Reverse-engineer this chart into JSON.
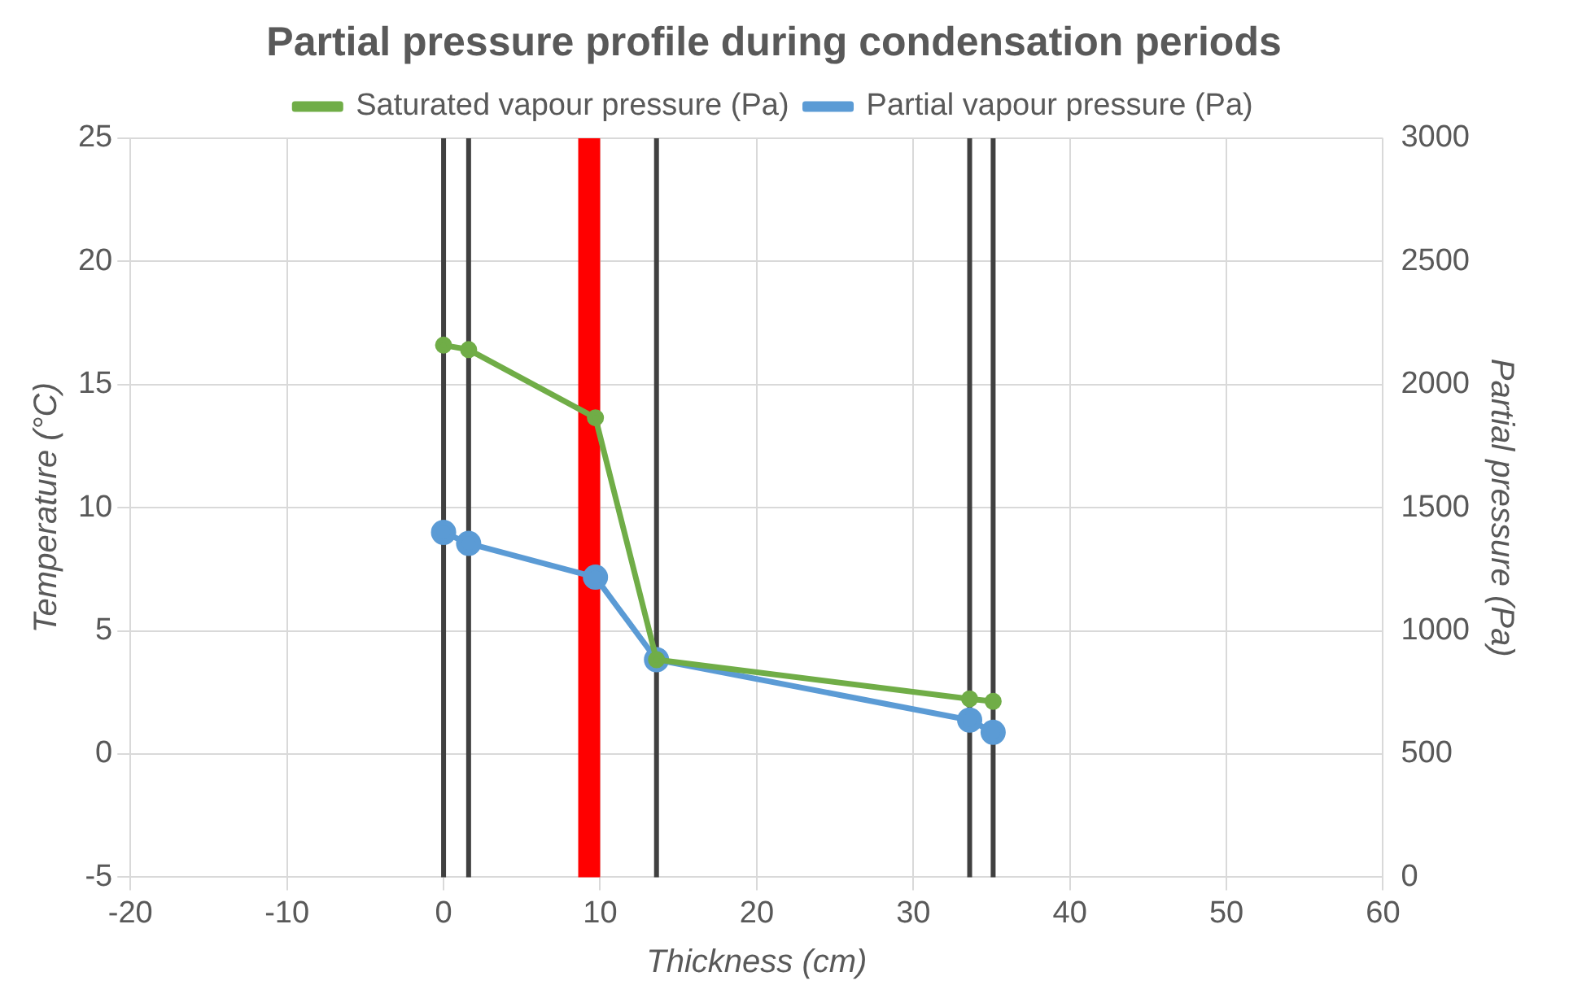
{
  "chart_data": {
    "type": "line",
    "title": "Partial pressure profile during condensation periods",
    "xlabel": "Thickness (cm)",
    "ylabel": "Temperature (°C)",
    "y2label": "Partial pressure (Pa)",
    "x": [
      0,
      1.6,
      9.7,
      13.6,
      33.6,
      35.1
    ],
    "series": [
      {
        "name": "Saturated vapour pressure (Pa)",
        "color": "#70ad47",
        "axis": "y2",
        "values": [
          2160,
          2142,
          1865,
          883,
          724,
          714
        ]
      },
      {
        "name": "Partial vapour pressure (Pa)",
        "color": "#5b9bd5",
        "axis": "y2",
        "values": [
          1400,
          1355,
          1218,
          883,
          638,
          588
        ]
      }
    ],
    "xlim": [
      -20,
      60
    ],
    "xticks": [
      -20,
      -10,
      0,
      10,
      20,
      30,
      40,
      50,
      60
    ],
    "ylim": [
      -5,
      25
    ],
    "yticks": [
      -5,
      0,
      5,
      10,
      15,
      20,
      25
    ],
    "y2lim": [
      0,
      3000
    ],
    "y2ticks": [
      0,
      500,
      1000,
      1500,
      2000,
      2500,
      3000
    ],
    "ref_lines": [
      {
        "axis": "x",
        "value": 0,
        "color": "#404040"
      },
      {
        "axis": "x",
        "value": 1.6,
        "color": "#404040"
      },
      {
        "axis": "x",
        "value": 13.6,
        "color": "#404040"
      },
      {
        "axis": "x",
        "value": 33.6,
        "color": "#404040"
      },
      {
        "axis": "x",
        "value": 35.1,
        "color": "#404040"
      }
    ],
    "bands": [
      {
        "axis": "x",
        "from": 8.6,
        "to": 10.0,
        "color": "#ff0000"
      }
    ],
    "grid": true,
    "legend": "top",
    "marker": "circle",
    "line_style": "solid"
  }
}
